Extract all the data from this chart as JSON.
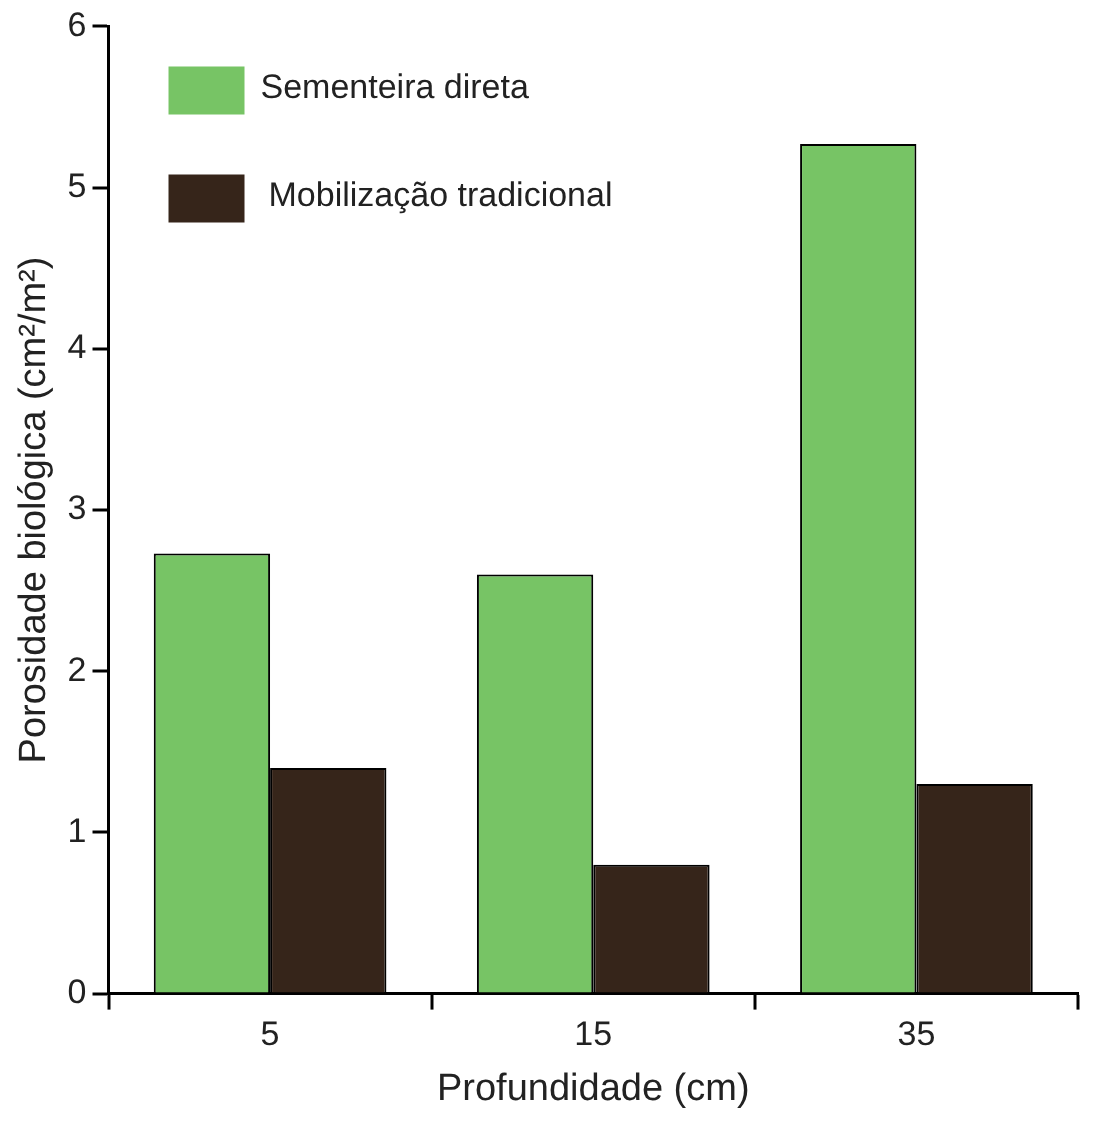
{
  "chart_data": {
    "type": "bar",
    "xlabel": "Profundidade (cm)",
    "ylabel": "Porosidade biológica (cm²/m²)",
    "categories": [
      "5",
      "15",
      "35"
    ],
    "series": [
      {
        "name": "Sementeira direta",
        "color": "#77c465",
        "values": [
          2.73,
          2.6,
          5.27
        ]
      },
      {
        "name": "Mobilização tradicional",
        "color": "#36251a",
        "values": [
          1.4,
          0.8,
          1.3
        ]
      }
    ],
    "ylim": [
      0,
      6
    ],
    "yticks": [
      0,
      1,
      2,
      3,
      4,
      5,
      6
    ],
    "grid": false,
    "legend": "top left"
  }
}
